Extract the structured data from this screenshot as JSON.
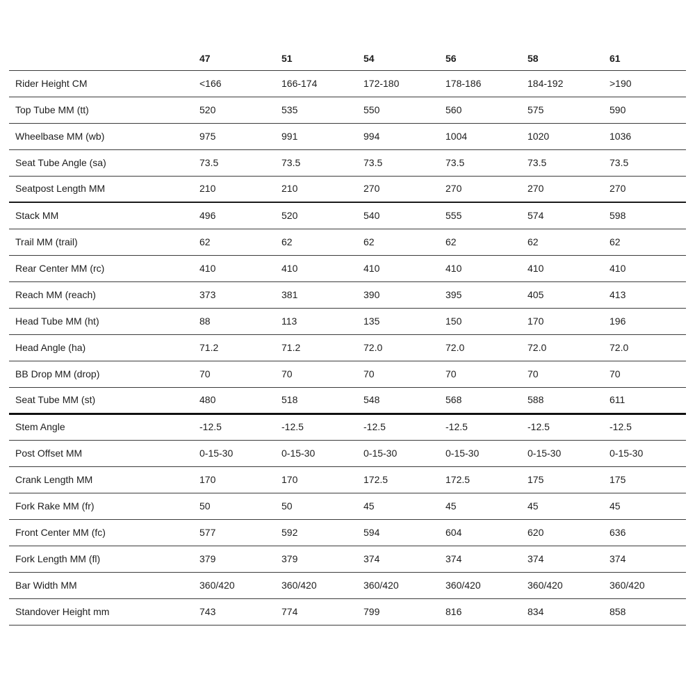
{
  "table": {
    "columns": [
      "47",
      "51",
      "54",
      "56",
      "58",
      "61"
    ],
    "rows": [
      {
        "label": "Rider Height CM",
        "values": [
          "<166",
          "166-174",
          "172-180",
          "178-186",
          "184-192",
          ">190"
        ],
        "divider": "normal"
      },
      {
        "label": "Top Tube MM (tt)",
        "values": [
          "520",
          "535",
          "550",
          "560",
          "575",
          "590"
        ],
        "divider": "normal"
      },
      {
        "label": "Wheelbase MM (wb)",
        "values": [
          "975",
          "991",
          "994",
          "1004",
          "1020",
          "1036"
        ],
        "divider": "normal"
      },
      {
        "label": "Seat Tube Angle (sa)",
        "values": [
          "73.5",
          "73.5",
          "73.5",
          "73.5",
          "73.5",
          "73.5"
        ],
        "divider": "normal"
      },
      {
        "label": "Seatpost Length MM",
        "values": [
          "210",
          "210",
          "270",
          "270",
          "270",
          "270"
        ],
        "divider": "medium"
      },
      {
        "label": "Stack MM",
        "values": [
          "496",
          "520",
          "540",
          "555",
          "574",
          "598"
        ],
        "divider": "normal"
      },
      {
        "label": "Trail MM (trail)",
        "values": [
          "62",
          "62",
          "62",
          "62",
          "62",
          "62"
        ],
        "divider": "normal"
      },
      {
        "label": "Rear Center MM (rc)",
        "values": [
          "410",
          "410",
          "410",
          "410",
          "410",
          "410"
        ],
        "divider": "normal"
      },
      {
        "label": "Reach MM (reach)",
        "values": [
          "373",
          "381",
          "390",
          "395",
          "405",
          "413"
        ],
        "divider": "normal"
      },
      {
        "label": "Head Tube MM (ht)",
        "values": [
          "88",
          "113",
          "135",
          "150",
          "170",
          "196"
        ],
        "divider": "normal"
      },
      {
        "label": "Head Angle (ha)",
        "values": [
          "71.2",
          "71.2",
          "72.0",
          "72.0",
          "72.0",
          "72.0"
        ],
        "divider": "normal"
      },
      {
        "label": "BB Drop MM (drop)",
        "values": [
          "70",
          "70",
          "70",
          "70",
          "70",
          "70"
        ],
        "divider": "normal"
      },
      {
        "label": "Seat Tube MM (st)",
        "values": [
          "480",
          "518",
          "548",
          "568",
          "588",
          "611"
        ],
        "divider": "thick"
      },
      {
        "label": "Stem Angle",
        "values": [
          "-12.5",
          "-12.5",
          "-12.5",
          "-12.5",
          "-12.5",
          "-12.5"
        ],
        "divider": "normal"
      },
      {
        "label": "Post Offset MM",
        "values": [
          "0-15-30",
          "0-15-30",
          "0-15-30",
          "0-15-30",
          "0-15-30",
          "0-15-30"
        ],
        "divider": "normal"
      },
      {
        "label": "Crank Length MM",
        "values": [
          "170",
          "170",
          "172.5",
          "172.5",
          "175",
          "175"
        ],
        "divider": "normal"
      },
      {
        "label": "Fork Rake MM (fr)",
        "values": [
          "50",
          "50",
          "45",
          "45",
          "45",
          "45"
        ],
        "divider": "normal"
      },
      {
        "label": "Front Center MM (fc)",
        "values": [
          "577",
          "592",
          "594",
          "604",
          "620",
          "636"
        ],
        "divider": "normal"
      },
      {
        "label": "Fork Length MM (fl)",
        "values": [
          "379",
          "379",
          "374",
          "374",
          "374",
          "374"
        ],
        "divider": "normal"
      },
      {
        "label": "Bar Width MM",
        "values": [
          "360/420",
          "360/420",
          "360/420",
          "360/420",
          "360/420",
          "360/420"
        ],
        "divider": "normal"
      },
      {
        "label": "Standover Height mm",
        "values": [
          "743",
          "774",
          "799",
          "816",
          "834",
          "858"
        ],
        "divider": "normal"
      }
    ],
    "colors": {
      "text": "#1d1d1d",
      "line": "#3a3a3a",
      "line_medium": "#1a1a1a",
      "line_thick": "#111111",
      "background": "#ffffff"
    }
  }
}
